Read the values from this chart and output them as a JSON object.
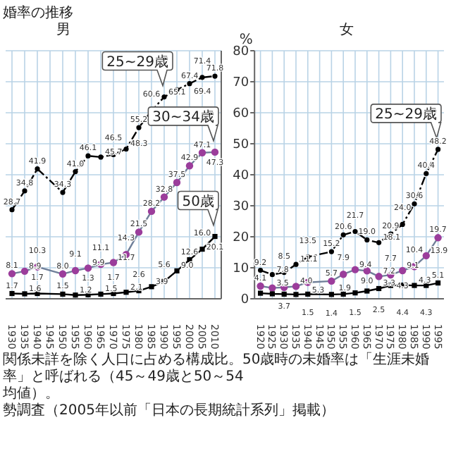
{
  "chart_data": [
    {
      "type": "line",
      "title": "男",
      "categories": [
        "1930",
        "1935",
        "1940",
        "1945",
        "1950",
        "1955",
        "1960",
        "1965",
        "1970",
        "1975",
        "1980",
        "1985",
        "1990",
        "1995",
        "2000",
        "2005",
        "2010"
      ],
      "ylim": [
        0,
        80
      ],
      "yticks": [
        0,
        10,
        20,
        30,
        40,
        50,
        60,
        70,
        80
      ],
      "grid": true,
      "tick_labels": "x",
      "series": [
        {
          "color": "#000000",
          "marker": "circle",
          "line_style": "dashed",
          "values": [
            28.7,
            34.8,
            41.9,
            null,
            34.3,
            41.0,
            46.1,
            45.7,
            46.5,
            48.3,
            55.2,
            60.6,
            65.1,
            67.4,
            69.4,
            71.4,
            71.8
          ],
          "value_labels": [
            "28.7",
            "34.8",
            "41.9",
            null,
            "34.3",
            "41.0",
            "46.1",
            "45.7",
            "46.5",
            "48.3",
            "55.2",
            "60.6",
            "65.1",
            "67.4",
            "69.4",
            "71.4",
            "71.8"
          ]
        },
        {
          "color": "#9b3d9b",
          "marker": "circle",
          "line_style": "solid",
          "values": [
            8.1,
            8.9,
            10.3,
            null,
            8.0,
            9.1,
            9.9,
            11.1,
            11.7,
            14.3,
            21.5,
            28.2,
            32.8,
            37.5,
            42.9,
            47.1,
            47.3
          ],
          "value_labels": [
            "8.1",
            "8.9",
            "10.3",
            null,
            "8.0",
            "9.1",
            "9.9",
            "11.1",
            "11.7",
            "14.3",
            "21.5",
            "28.2",
            "32.8",
            "37.5",
            "42.9",
            "47.1",
            "47.3"
          ]
        },
        {
          "color": "#000000",
          "marker": "square",
          "line_style": "solid",
          "values": [
            1.7,
            1.6,
            1.7,
            null,
            1.5,
            1.2,
            1.3,
            1.5,
            1.7,
            2.1,
            2.6,
            3.9,
            5.6,
            9.0,
            12.6,
            16.0,
            20.1
          ],
          "value_labels": [
            "1.7",
            "1.6",
            "1.7",
            null,
            "1.5",
            "1.2",
            "1.3",
            "1.5",
            "1.7",
            "2.1",
            "2.6",
            "3.9",
            "5.6",
            "9.0",
            "12.6",
            "16.0",
            "20.1"
          ]
        }
      ],
      "annotations": [
        "婚率の推移",
        {
          "text": "25~29歳",
          "x": "1990",
          "y": 65.1
        },
        {
          "text": "30~34歳",
          "x": "2010",
          "y": 47.3
        },
        {
          "text": "50歳",
          "x": "2010",
          "y": 20.1
        },
        "関係未詳を除く人口に占める構成比。50歳時の未婚率は「生涯未婚率」と呼ばれる（45～49歳と50～54",
        "均値）。",
        "勢調査（2005年以前「日本の長期統計系列」掲載）"
      ]
    },
    {
      "type": "line",
      "title": "女",
      "ylabel": "%",
      "categories": [
        "1920",
        "1925",
        "1930",
        "1935",
        "1940",
        "1945",
        "1950",
        "1955",
        "1960",
        "1965",
        "1970",
        "1975",
        "1980",
        "1985",
        "1990",
        "1995"
      ],
      "ylim": [
        0,
        80
      ],
      "yticks": [
        0,
        10,
        20,
        30,
        40,
        50,
        60,
        70,
        80
      ],
      "grid": true,
      "series": [
        {
          "color": "#000000",
          "marker": "circle",
          "line_style": "dashed",
          "values": [
            9.2,
            7.8,
            8.5,
            11.1,
            13.5,
            null,
            15.2,
            20.6,
            21.7,
            19.0,
            18.1,
            20.9,
            24.0,
            30.6,
            40.4,
            48.2
          ],
          "value_labels": [
            "9.2",
            "7.8",
            "8.5",
            "11.1",
            "13.5",
            null,
            "15.2",
            "20.6",
            "21.7",
            "19.0",
            "18.1",
            "20.9",
            "24.0",
            "30.6",
            "40.4",
            "48.2"
          ]
        },
        {
          "color": "#9b3d9b",
          "marker": "circle",
          "line_style": "solid",
          "values": [
            4.1,
            3.5,
            3.7,
            4.0,
            5.3,
            null,
            5.7,
            7.9,
            9.4,
            9.0,
            7.2,
            7.7,
            9.1,
            10.4,
            13.9,
            19.7
          ],
          "value_labels": [
            "4.1",
            "3.5",
            "3.7",
            "4.0",
            "5.3",
            null,
            "5.7",
            "7.9",
            "9.4",
            "9.0",
            "7.2",
            "7.7",
            "9.1",
            "10.4",
            "13.9",
            "19.7"
          ]
        },
        {
          "color": "#000000",
          "marker": "square",
          "line_style": "solid",
          "values": [
            1.8,
            1.6,
            1.5,
            1.4,
            1.5,
            null,
            1.4,
            1.5,
            1.9,
            2.5,
            3.3,
            4.3,
            4.4,
            4.3,
            4.3,
            5.1
          ],
          "value_labels": [
            null,
            null,
            null,
            null,
            "1.5",
            null,
            "1.4",
            "1.5",
            "1.9",
            "2.5",
            "3.3",
            "4.3",
            "4.4",
            "4.3",
            "4.3",
            "5.1"
          ]
        }
      ],
      "annotations": [
        {
          "text": "25~29歳",
          "x": "1995",
          "y": 48.2
        }
      ]
    }
  ]
}
